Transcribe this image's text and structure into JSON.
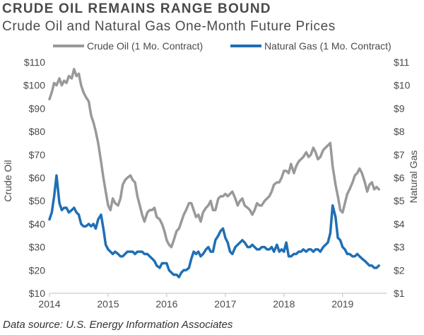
{
  "chart_data": {
    "type": "line",
    "title": "CRUDE OIL REMAINS RANGE BOUND",
    "subtitle": "Crude Oil and Natural Gas One-Month Future Prices",
    "source": "Data source: U.S. Energy Information Associates",
    "ylabel_left": "Crude Oil",
    "ylabel_right": "Natural Gas",
    "ylim_left": [
      10,
      110
    ],
    "ylim_right": [
      1,
      11
    ],
    "xlim": [
      2014.0,
      2019.75
    ],
    "x_ticks": [
      2014,
      2015,
      2016,
      2017,
      2018,
      2019
    ],
    "x_tick_labels": [
      "2014",
      "2015",
      "2016",
      "2017",
      "2018",
      "2019"
    ],
    "y_ticks_left": [
      "$10",
      "$20",
      "$30",
      "$40",
      "$50",
      "$60",
      "$70",
      "$80",
      "$90",
      "$100",
      "$110"
    ],
    "y_ticks_right": [
      "$1",
      "$2",
      "$3",
      "$4",
      "$5",
      "$6",
      "$7",
      "$8",
      "$9",
      "$10",
      "$11"
    ],
    "grid": false,
    "legend_position": "top",
    "series": [
      {
        "name": "Crude Oil (1 Mo. Contract)",
        "axis": "left",
        "color": "#999999",
        "x": [
          2014.0,
          2014.04,
          2014.08,
          2014.12,
          2014.17,
          2014.21,
          2014.25,
          2014.29,
          2014.33,
          2014.38,
          2014.42,
          2014.46,
          2014.5,
          2014.54,
          2014.58,
          2014.62,
          2014.67,
          2014.71,
          2014.75,
          2014.79,
          2014.83,
          2014.88,
          2014.92,
          2014.96,
          2015.0,
          2015.04,
          2015.08,
          2015.12,
          2015.17,
          2015.21,
          2015.25,
          2015.29,
          2015.33,
          2015.38,
          2015.42,
          2015.46,
          2015.5,
          2015.54,
          2015.58,
          2015.62,
          2015.67,
          2015.71,
          2015.75,
          2015.79,
          2015.83,
          2015.88,
          2015.92,
          2015.96,
          2016.0,
          2016.04,
          2016.08,
          2016.12,
          2016.17,
          2016.21,
          2016.25,
          2016.29,
          2016.33,
          2016.38,
          2016.42,
          2016.46,
          2016.5,
          2016.54,
          2016.58,
          2016.62,
          2016.67,
          2016.71,
          2016.75,
          2016.79,
          2016.83,
          2016.88,
          2016.92,
          2016.96,
          2017.0,
          2017.04,
          2017.08,
          2017.12,
          2017.17,
          2017.21,
          2017.25,
          2017.29,
          2017.33,
          2017.38,
          2017.42,
          2017.46,
          2017.5,
          2017.54,
          2017.58,
          2017.62,
          2017.67,
          2017.71,
          2017.75,
          2017.79,
          2017.83,
          2017.88,
          2017.92,
          2017.96,
          2018.0,
          2018.04,
          2018.08,
          2018.12,
          2018.17,
          2018.21,
          2018.25,
          2018.29,
          2018.33,
          2018.38,
          2018.42,
          2018.46,
          2018.5,
          2018.54,
          2018.58,
          2018.62,
          2018.67,
          2018.71,
          2018.75,
          2018.79,
          2018.83,
          2018.88,
          2018.92,
          2018.96,
          2019.0,
          2019.04,
          2019.08,
          2019.12,
          2019.17,
          2019.21,
          2019.25,
          2019.29,
          2019.33,
          2019.38,
          2019.42,
          2019.46,
          2019.5,
          2019.54,
          2019.58,
          2019.62
        ],
        "values": [
          94,
          97,
          101,
          100,
          103,
          100,
          102,
          101,
          104,
          103,
          107,
          104,
          105,
          100,
          97,
          95,
          93,
          87,
          84,
          80,
          75,
          67,
          60,
          54,
          48,
          46,
          51,
          49,
          48,
          51,
          57,
          59,
          60,
          61,
          59,
          58,
          52,
          48,
          44,
          41,
          45,
          46,
          46,
          47,
          43,
          42,
          40,
          37,
          33,
          31,
          30,
          33,
          37,
          38,
          41,
          44,
          46,
          49,
          49,
          46,
          43,
          44,
          41,
          45,
          47,
          48,
          50,
          46,
          46,
          51,
          52,
          52,
          53,
          52,
          53,
          54,
          51,
          48,
          50,
          51,
          48,
          47,
          46,
          44,
          46,
          49,
          48,
          48,
          50,
          51,
          52,
          54,
          57,
          58,
          58,
          60,
          63,
          63,
          62,
          66,
          62,
          65,
          67,
          68,
          69,
          71,
          69,
          70,
          73,
          71,
          68,
          69,
          72,
          73,
          74,
          75,
          65,
          57,
          52,
          46,
          45,
          49,
          53,
          55,
          58,
          61,
          62,
          64,
          62,
          58,
          54,
          57,
          58,
          55,
          56,
          55
        ]
      },
      {
        "name": "Natural Gas (1 Mo. Contract)",
        "axis": "right",
        "color": "#1f6fb5",
        "x": [
          2014.0,
          2014.04,
          2014.08,
          2014.12,
          2014.17,
          2014.21,
          2014.25,
          2014.29,
          2014.33,
          2014.38,
          2014.42,
          2014.46,
          2014.5,
          2014.54,
          2014.58,
          2014.62,
          2014.67,
          2014.71,
          2014.75,
          2014.79,
          2014.83,
          2014.88,
          2014.92,
          2014.96,
          2015.0,
          2015.04,
          2015.08,
          2015.12,
          2015.17,
          2015.21,
          2015.25,
          2015.29,
          2015.33,
          2015.38,
          2015.42,
          2015.46,
          2015.5,
          2015.54,
          2015.58,
          2015.62,
          2015.67,
          2015.71,
          2015.75,
          2015.79,
          2015.83,
          2015.88,
          2015.92,
          2015.96,
          2016.0,
          2016.04,
          2016.08,
          2016.12,
          2016.17,
          2016.21,
          2016.25,
          2016.29,
          2016.33,
          2016.38,
          2016.42,
          2016.46,
          2016.5,
          2016.54,
          2016.58,
          2016.62,
          2016.67,
          2016.71,
          2016.75,
          2016.79,
          2016.83,
          2016.88,
          2016.92,
          2016.96,
          2017.0,
          2017.04,
          2017.08,
          2017.12,
          2017.17,
          2017.21,
          2017.25,
          2017.29,
          2017.33,
          2017.38,
          2017.42,
          2017.46,
          2017.5,
          2017.54,
          2017.58,
          2017.62,
          2017.67,
          2017.71,
          2017.75,
          2017.79,
          2017.83,
          2017.88,
          2017.92,
          2017.96,
          2018.0,
          2018.04,
          2018.08,
          2018.12,
          2018.17,
          2018.21,
          2018.25,
          2018.29,
          2018.33,
          2018.38,
          2018.42,
          2018.46,
          2018.5,
          2018.54,
          2018.58,
          2018.62,
          2018.67,
          2018.71,
          2018.75,
          2018.79,
          2018.83,
          2018.88,
          2018.92,
          2018.96,
          2019.0,
          2019.04,
          2019.08,
          2019.12,
          2019.17,
          2019.21,
          2019.25,
          2019.29,
          2019.33,
          2019.38,
          2019.42,
          2019.46,
          2019.5,
          2019.54,
          2019.58,
          2019.62
        ],
        "values": [
          4.2,
          4.5,
          5.2,
          6.1,
          4.9,
          4.6,
          4.7,
          4.7,
          4.5,
          4.6,
          4.7,
          4.5,
          4.4,
          4.0,
          3.9,
          3.9,
          4.0,
          3.9,
          4.0,
          3.8,
          4.2,
          4.4,
          3.8,
          3.1,
          2.9,
          2.8,
          2.7,
          2.8,
          2.7,
          2.6,
          2.6,
          2.7,
          2.8,
          2.8,
          2.8,
          2.7,
          2.8,
          2.8,
          2.8,
          2.7,
          2.7,
          2.6,
          2.5,
          2.4,
          2.2,
          2.1,
          2.3,
          2.3,
          2.3,
          2.0,
          1.9,
          1.8,
          1.8,
          1.7,
          1.9,
          2.0,
          2.0,
          2.1,
          2.5,
          2.8,
          2.7,
          2.8,
          2.6,
          2.7,
          2.9,
          3.0,
          2.8,
          2.8,
          3.3,
          3.5,
          3.7,
          3.8,
          3.4,
          3.2,
          2.8,
          2.7,
          3.0,
          3.1,
          3.2,
          3.3,
          3.2,
          3.0,
          3.0,
          3.1,
          3.0,
          2.9,
          2.9,
          3.0,
          3.0,
          2.9,
          2.9,
          3.0,
          2.8,
          3.1,
          2.8,
          2.9,
          2.8,
          3.2,
          2.6,
          2.6,
          2.7,
          2.7,
          2.8,
          2.8,
          2.9,
          2.8,
          2.9,
          2.9,
          2.8,
          2.9,
          2.9,
          2.8,
          3.0,
          3.1,
          3.2,
          3.6,
          4.8,
          4.3,
          3.4,
          3.3,
          3.0,
          2.9,
          2.7,
          2.7,
          2.6,
          2.6,
          2.7,
          2.6,
          2.5,
          2.4,
          2.3,
          2.2,
          2.2,
          2.1,
          2.1,
          2.2
        ]
      }
    ]
  }
}
